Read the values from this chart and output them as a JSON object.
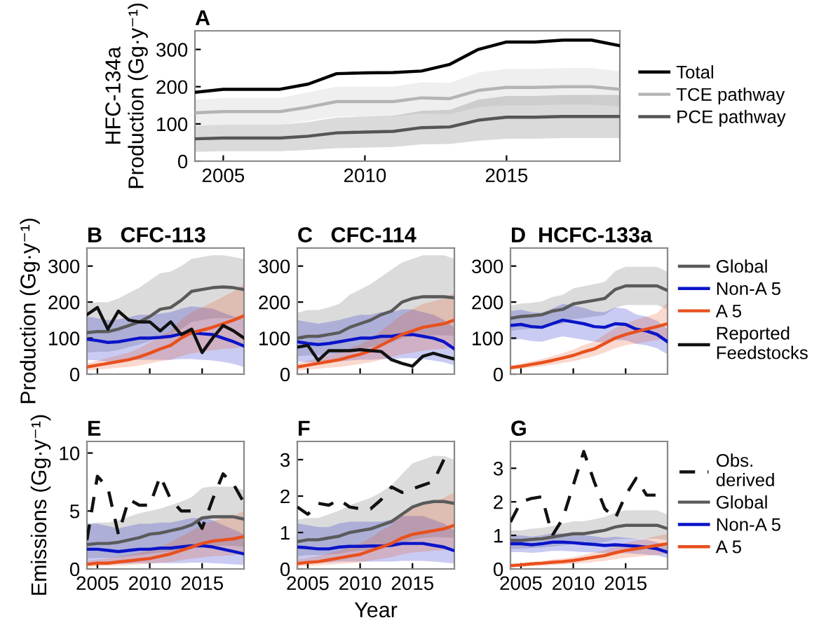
{
  "chart_data": [
    {
      "type": "line",
      "title": "A",
      "ylabel": "HFC-134a\nProduction (Gg·y⁻¹)",
      "x": [
        2004,
        2005,
        2006,
        2007,
        2008,
        2009,
        2010,
        2011,
        2012,
        2013,
        2014,
        2015,
        2016,
        2017,
        2018,
        2019
      ],
      "xlim": [
        2004,
        2019
      ],
      "xticks": [
        2005,
        2010,
        2015
      ],
      "ylim": [
        0,
        350
      ],
      "yticks": [
        0,
        100,
        200,
        300
      ],
      "grid": false,
      "legend": "right",
      "series": [
        {
          "name": "Total",
          "color": "#000000",
          "values": [
            185,
            193,
            193,
            193,
            207,
            235,
            237,
            238,
            242,
            260,
            300,
            320,
            320,
            325,
            325,
            310
          ]
        },
        {
          "name": "TCE pathway",
          "color": "#b4b4b4",
          "values": [
            130,
            133,
            133,
            133,
            145,
            160,
            160,
            160,
            170,
            168,
            190,
            198,
            198,
            200,
            200,
            193
          ],
          "lower": [
            95,
            98,
            98,
            98,
            108,
            120,
            120,
            120,
            128,
            126,
            145,
            150,
            150,
            152,
            152,
            147
          ],
          "upper": [
            165,
            170,
            170,
            170,
            185,
            200,
            200,
            200,
            212,
            210,
            238,
            248,
            248,
            250,
            250,
            242
          ]
        },
        {
          "name": "PCE pathway",
          "color": "#555555",
          "values": [
            60,
            62,
            62,
            62,
            67,
            76,
            78,
            80,
            90,
            92,
            110,
            118,
            118,
            120,
            120,
            120
          ],
          "lower": [
            25,
            27,
            27,
            27,
            30,
            35,
            36,
            38,
            45,
            46,
            55,
            60,
            60,
            62,
            62,
            62
          ],
          "upper": [
            95,
            98,
            98,
            98,
            105,
            117,
            120,
            122,
            135,
            138,
            165,
            175,
            175,
            178,
            178,
            178
          ]
        }
      ]
    },
    {
      "type": "line",
      "title": "B   CFC-113",
      "ylabel": "Production (Gg·y⁻¹)",
      "x": [
        2004,
        2005,
        2006,
        2007,
        2008,
        2009,
        2010,
        2011,
        2012,
        2013,
        2014,
        2015,
        2016,
        2017,
        2018,
        2019
      ],
      "xlim": [
        2004,
        2019
      ],
      "xticks": [
        2005,
        2010,
        2015
      ],
      "ylim": [
        0,
        350
      ],
      "yticks": [
        0,
        100,
        200,
        300
      ],
      "tick_labels": "y",
      "series": [
        {
          "color": "#5a5a5a",
          "values": [
            115,
            118,
            118,
            125,
            135,
            145,
            160,
            180,
            185,
            205,
            230,
            235,
            240,
            242,
            240,
            235
          ],
          "lower": [
            60,
            62,
            62,
            67,
            75,
            82,
            92,
            105,
            110,
            125,
            145,
            150,
            155,
            155,
            155,
            150
          ],
          "upper": [
            195,
            200,
            200,
            210,
            225,
            240,
            260,
            280,
            285,
            300,
            320,
            325,
            330,
            330,
            325,
            320
          ]
        },
        {
          "color": "#0a14c8",
          "values": [
            97,
            93,
            88,
            90,
            95,
            100,
            100,
            102,
            105,
            112,
            115,
            112,
            110,
            100,
            90,
            78
          ],
          "lower": [
            40,
            38,
            35,
            36,
            38,
            40,
            40,
            40,
            40,
            42,
            42,
            40,
            38,
            34,
            28,
            20
          ],
          "upper": [
            160,
            155,
            150,
            152,
            158,
            165,
            165,
            168,
            172,
            182,
            188,
            185,
            182,
            170,
            160,
            150
          ]
        },
        {
          "color": "#e8501e",
          "values": [
            20,
            25,
            30,
            35,
            40,
            48,
            58,
            70,
            80,
            100,
            115,
            122,
            130,
            140,
            150,
            162
          ],
          "lower": [
            10,
            12,
            15,
            18,
            20,
            24,
            30,
            36,
            40,
            50,
            58,
            62,
            66,
            70,
            72,
            75
          ],
          "upper": [
            30,
            37,
            45,
            52,
            60,
            72,
            88,
            105,
            120,
            150,
            172,
            185,
            200,
            215,
            230,
            250
          ]
        },
        {
          "color": "#111111",
          "values": [
            165,
            185,
            125,
            175,
            150,
            145,
            145,
            120,
            145,
            110,
            125,
            60,
            100,
            135,
            120,
            100
          ]
        }
      ]
    },
    {
      "type": "line",
      "title": "C   CFC-114",
      "x": [
        2004,
        2005,
        2006,
        2007,
        2008,
        2009,
        2010,
        2011,
        2012,
        2013,
        2014,
        2015,
        2016,
        2017,
        2018,
        2019
      ],
      "xlim": [
        2004,
        2019
      ],
      "xticks": [
        2005,
        2010,
        2015
      ],
      "ylim": [
        0,
        350
      ],
      "yticks": [
        0,
        100,
        200,
        300
      ],
      "tick_labels": "y",
      "series": [
        {
          "color": "#5a5a5a",
          "values": [
            100,
            105,
            105,
            110,
            115,
            130,
            140,
            150,
            165,
            175,
            200,
            210,
            215,
            215,
            215,
            212
          ],
          "lower": [
            50,
            52,
            52,
            55,
            58,
            65,
            70,
            75,
            82,
            88,
            100,
            105,
            108,
            108,
            108,
            106
          ],
          "upper": [
            170,
            178,
            178,
            185,
            195,
            220,
            235,
            250,
            270,
            290,
            310,
            320,
            330,
            330,
            330,
            320
          ]
        },
        {
          "color": "#0a14c8",
          "values": [
            90,
            85,
            82,
            85,
            90,
            95,
            100,
            100,
            105,
            105,
            110,
            110,
            105,
            100,
            90,
            70
          ],
          "lower": [
            35,
            33,
            30,
            32,
            35,
            38,
            40,
            40,
            42,
            42,
            44,
            44,
            42,
            38,
            33,
            25
          ],
          "upper": [
            150,
            145,
            140,
            145,
            150,
            158,
            165,
            165,
            172,
            172,
            180,
            180,
            172,
            165,
            150,
            130
          ]
        },
        {
          "color": "#e8501e",
          "values": [
            20,
            25,
            30,
            35,
            40,
            48,
            55,
            65,
            80,
            95,
            110,
            120,
            130,
            135,
            140,
            150
          ],
          "lower": [
            10,
            12,
            15,
            18,
            20,
            24,
            28,
            33,
            40,
            48,
            55,
            60,
            65,
            68,
            70,
            75
          ],
          "upper": [
            30,
            37,
            45,
            52,
            60,
            72,
            82,
            98,
            120,
            142,
            165,
            180,
            195,
            202,
            210,
            225
          ]
        },
        {
          "color": "#111111",
          "values": [
            75,
            80,
            38,
            65,
            65,
            65,
            68,
            65,
            63,
            40,
            30,
            22,
            50,
            58,
            50,
            42
          ]
        }
      ]
    },
    {
      "type": "line",
      "title": "D  HCFC-133a",
      "x": [
        2004,
        2005,
        2006,
        2007,
        2008,
        2009,
        2010,
        2011,
        2012,
        2013,
        2014,
        2015,
        2016,
        2017,
        2018,
        2019
      ],
      "xlim": [
        2004,
        2019
      ],
      "xticks": [
        2005,
        2010,
        2015
      ],
      "ylim": [
        0,
        350
      ],
      "yticks": [
        0,
        100,
        200,
        300
      ],
      "tick_labels": "y",
      "legend": "right",
      "series": [
        {
          "name": "Global",
          "color": "#5a5a5a",
          "values": [
            155,
            160,
            162,
            165,
            175,
            180,
            195,
            200,
            205,
            210,
            235,
            245,
            245,
            245,
            245,
            232
          ],
          "lower": [
            120,
            124,
            126,
            128,
            136,
            140,
            152,
            156,
            160,
            164,
            184,
            192,
            192,
            192,
            192,
            180
          ],
          "upper": [
            190,
            196,
            198,
            202,
            214,
            220,
            238,
            244,
            250,
            256,
            286,
            298,
            298,
            298,
            298,
            284
          ]
        },
        {
          "name": "Non-A 5",
          "color": "#0a14c8",
          "values": [
            135,
            138,
            132,
            130,
            140,
            150,
            145,
            140,
            132,
            130,
            140,
            138,
            125,
            120,
            110,
            90
          ],
          "lower": [
            95,
            97,
            92,
            90,
            98,
            105,
            100,
            96,
            90,
            88,
            95,
            94,
            84,
            80,
            72,
            55
          ],
          "upper": [
            175,
            179,
            172,
            170,
            182,
            195,
            190,
            184,
            174,
            172,
            185,
            182,
            166,
            160,
            148,
            125
          ]
        },
        {
          "name": "A 5",
          "color": "#e8501e",
          "values": [
            18,
            22,
            27,
            32,
            38,
            45,
            52,
            62,
            70,
            85,
            100,
            110,
            118,
            125,
            132,
            140
          ],
          "lower": [
            12,
            15,
            18,
            22,
            26,
            31,
            36,
            43,
            50,
            60,
            72,
            80,
            85,
            90,
            95,
            100
          ],
          "upper": [
            24,
            29,
            36,
            42,
            50,
            59,
            68,
            81,
            90,
            110,
            128,
            140,
            151,
            160,
            169,
            200
          ]
        },
        {
          "name": "Reported\nFeedstocks",
          "color": "#111111",
          "values": [
            null,
            null,
            null,
            null,
            null,
            null,
            null,
            null,
            null,
            null,
            null,
            null,
            null,
            null,
            null,
            null
          ]
        }
      ]
    },
    {
      "type": "line",
      "title": "E",
      "ylabel": "Emissions (Gg·y⁻¹)",
      "x": [
        2004,
        2005,
        2006,
        2007,
        2008,
        2009,
        2010,
        2011,
        2012,
        2013,
        2014,
        2015,
        2016,
        2017,
        2018,
        2019
      ],
      "xlim": [
        2004,
        2019
      ],
      "xticks": [
        2005,
        2010,
        2015
      ],
      "ylim": [
        0,
        11
      ],
      "yticks": [
        0,
        5,
        10
      ],
      "series": [
        {
          "color": "#111111",
          "line_style": "dashed",
          "values": [
            2.5,
            8,
            7,
            3,
            6,
            5.5,
            5.5,
            8,
            6,
            5,
            5,
            3.5,
            6,
            8.2,
            7.3,
            5.7
          ]
        },
        {
          "color": "#5a5a5a",
          "values": [
            2.1,
            2.2,
            2.2,
            2.3,
            2.5,
            2.7,
            3.0,
            3.1,
            3.3,
            3.5,
            3.8,
            4.4,
            4.5,
            4.5,
            4.5,
            4.3
          ],
          "lower": [
            0.9,
            0.95,
            0.95,
            1.0,
            1.1,
            1.2,
            1.3,
            1.4,
            1.5,
            1.6,
            1.7,
            2.0,
            2.0,
            2.0,
            2.0,
            1.9
          ],
          "upper": [
            3.9,
            4.0,
            4.0,
            4.2,
            4.5,
            4.8,
            5.0,
            5.2,
            5.5,
            5.8,
            6.2,
            7.0,
            7.1,
            7.1,
            7.1,
            6.8
          ]
        },
        {
          "color": "#0a14c8",
          "values": [
            1.7,
            1.7,
            1.6,
            1.5,
            1.6,
            1.7,
            1.7,
            1.8,
            1.8,
            1.9,
            2.0,
            2.0,
            1.9,
            1.7,
            1.5,
            1.3
          ],
          "lower": [
            0.5,
            0.5,
            0.45,
            0.45,
            0.45,
            0.5,
            0.5,
            0.5,
            0.5,
            0.5,
            0.55,
            0.55,
            0.5,
            0.45,
            0.4,
            0.35
          ],
          "upper": [
            3.9,
            3.9,
            3.7,
            3.5,
            3.7,
            3.9,
            3.9,
            4.0,
            4.0,
            4.2,
            4.4,
            4.4,
            4.2,
            3.8,
            3.4,
            3.0
          ]
        },
        {
          "color": "#e8501e",
          "values": [
            0.4,
            0.5,
            0.5,
            0.6,
            0.7,
            0.8,
            0.9,
            1.1,
            1.3,
            1.6,
            1.9,
            2.2,
            2.4,
            2.5,
            2.6,
            2.8
          ],
          "lower": [
            0.2,
            0.22,
            0.25,
            0.3,
            0.35,
            0.4,
            0.45,
            0.55,
            0.6,
            0.75,
            0.9,
            1.0,
            1.1,
            1.15,
            1.2,
            1.3
          ],
          "upper": [
            0.7,
            0.8,
            0.9,
            1.05,
            1.2,
            1.4,
            1.6,
            1.9,
            2.3,
            2.8,
            3.3,
            3.8,
            4.1,
            4.4,
            4.6,
            5.0
          ]
        }
      ]
    },
    {
      "type": "line",
      "title": "F",
      "xlabel": "Year",
      "x": [
        2004,
        2005,
        2006,
        2007,
        2008,
        2009,
        2010,
        2011,
        2012,
        2013,
        2014,
        2015,
        2016,
        2017,
        2018,
        2019
      ],
      "xlim": [
        2004,
        2019
      ],
      "xticks": [
        2005,
        2010,
        2015
      ],
      "ylim": [
        0,
        3.5
      ],
      "yticks": [
        0,
        1,
        2,
        3
      ],
      "series": [
        {
          "color": "#111111",
          "line_style": "dashed",
          "values": [
            1.7,
            1.5,
            1.8,
            1.75,
            1.9,
            1.7,
            1.65,
            1.65,
            1.9,
            2.25,
            2.1,
            2.2,
            2.3,
            2.4,
            3.0,
            2.9
          ]
        },
        {
          "color": "#5a5a5a",
          "values": [
            0.75,
            0.8,
            0.8,
            0.85,
            0.9,
            1.0,
            1.05,
            1.1,
            1.2,
            1.3,
            1.5,
            1.7,
            1.8,
            1.85,
            1.85,
            1.8
          ],
          "lower": [
            0.35,
            0.38,
            0.38,
            0.4,
            0.42,
            0.47,
            0.5,
            0.52,
            0.57,
            0.62,
            0.7,
            0.8,
            0.85,
            0.87,
            0.87,
            0.85
          ],
          "upper": [
            1.35,
            1.4,
            1.4,
            1.5,
            1.6,
            1.75,
            1.85,
            1.95,
            2.1,
            2.3,
            2.6,
            2.9,
            3.0,
            3.1,
            3.1,
            3.0
          ]
        },
        {
          "color": "#0a14c8",
          "values": [
            0.6,
            0.58,
            0.55,
            0.55,
            0.6,
            0.62,
            0.62,
            0.63,
            0.63,
            0.65,
            0.7,
            0.7,
            0.7,
            0.65,
            0.6,
            0.5
          ],
          "lower": [
            0.2,
            0.2,
            0.18,
            0.18,
            0.2,
            0.2,
            0.2,
            0.2,
            0.2,
            0.2,
            0.22,
            0.22,
            0.22,
            0.2,
            0.18,
            0.15
          ],
          "upper": [
            1.25,
            1.2,
            1.15,
            1.15,
            1.25,
            1.3,
            1.3,
            1.3,
            1.3,
            1.35,
            1.45,
            1.45,
            1.45,
            1.35,
            1.25,
            1.05
          ]
        },
        {
          "color": "#e8501e",
          "values": [
            0.15,
            0.18,
            0.2,
            0.25,
            0.3,
            0.35,
            0.4,
            0.5,
            0.6,
            0.7,
            0.85,
            0.95,
            1.0,
            1.05,
            1.1,
            1.2
          ],
          "lower": [
            0.07,
            0.08,
            0.1,
            0.12,
            0.14,
            0.16,
            0.18,
            0.23,
            0.28,
            0.32,
            0.4,
            0.45,
            0.47,
            0.5,
            0.52,
            0.55
          ],
          "upper": [
            0.25,
            0.3,
            0.35,
            0.43,
            0.5,
            0.6,
            0.7,
            0.85,
            1.05,
            1.2,
            1.5,
            1.65,
            1.75,
            1.85,
            1.95,
            2.1
          ]
        }
      ]
    },
    {
      "type": "line",
      "title": "G",
      "x": [
        2004,
        2005,
        2006,
        2007,
        2008,
        2009,
        2010,
        2011,
        2012,
        2013,
        2014,
        2015,
        2016,
        2017,
        2018,
        2019
      ],
      "xlim": [
        2004,
        2019
      ],
      "xticks": [
        2005,
        2010,
        2015
      ],
      "ylim": [
        0,
        3.8
      ],
      "yticks": [
        0,
        1,
        2,
        3
      ],
      "legend": "right",
      "series": [
        {
          "name": "Obs.\nderived",
          "color": "#111111",
          "line_style": "dashed",
          "values": [
            1.4,
            2.0,
            2.1,
            2.15,
            1.0,
            1.5,
            2.5,
            3.5,
            2.6,
            1.8,
            1.5,
            2.2,
            2.7,
            2.2,
            2.2,
            2.1
          ]
        },
        {
          "name": "Global",
          "color": "#5a5a5a",
          "values": [
            0.85,
            0.85,
            0.88,
            0.9,
            0.95,
            1.0,
            1.05,
            1.05,
            1.1,
            1.15,
            1.25,
            1.3,
            1.3,
            1.3,
            1.3,
            1.2
          ],
          "lower": [
            0.6,
            0.6,
            0.62,
            0.64,
            0.67,
            0.7,
            0.74,
            0.74,
            0.77,
            0.8,
            0.88,
            0.9,
            0.9,
            0.9,
            0.9,
            0.85
          ],
          "upper": [
            1.15,
            1.15,
            1.2,
            1.22,
            1.28,
            1.35,
            1.42,
            1.42,
            1.48,
            1.55,
            1.68,
            1.75,
            1.75,
            1.75,
            1.75,
            1.62
          ]
        },
        {
          "name": "Non-A 5",
          "color": "#0a14c8",
          "values": [
            0.75,
            0.75,
            0.72,
            0.75,
            0.8,
            0.8,
            0.78,
            0.75,
            0.73,
            0.7,
            0.72,
            0.7,
            0.68,
            0.65,
            0.6,
            0.5
          ],
          "lower": [
            0.5,
            0.5,
            0.48,
            0.5,
            0.54,
            0.54,
            0.52,
            0.5,
            0.49,
            0.47,
            0.48,
            0.47,
            0.45,
            0.43,
            0.4,
            0.33
          ],
          "upper": [
            1.0,
            1.0,
            0.96,
            1.0,
            1.06,
            1.06,
            1.04,
            1.0,
            0.97,
            0.93,
            0.96,
            0.93,
            0.9,
            0.87,
            0.8,
            0.67
          ]
        },
        {
          "name": "A 5",
          "color": "#e8501e",
          "values": [
            0.1,
            0.12,
            0.15,
            0.17,
            0.2,
            0.22,
            0.25,
            0.3,
            0.35,
            0.4,
            0.48,
            0.55,
            0.6,
            0.65,
            0.7,
            0.75
          ],
          "lower": [
            0.06,
            0.07,
            0.09,
            0.1,
            0.12,
            0.13,
            0.15,
            0.18,
            0.21,
            0.24,
            0.29,
            0.33,
            0.36,
            0.39,
            0.42,
            0.45
          ],
          "upper": [
            0.14,
            0.17,
            0.21,
            0.24,
            0.28,
            0.31,
            0.35,
            0.42,
            0.49,
            0.56,
            0.67,
            0.77,
            0.84,
            0.91,
            0.98,
            1.05
          ]
        }
      ]
    }
  ]
}
